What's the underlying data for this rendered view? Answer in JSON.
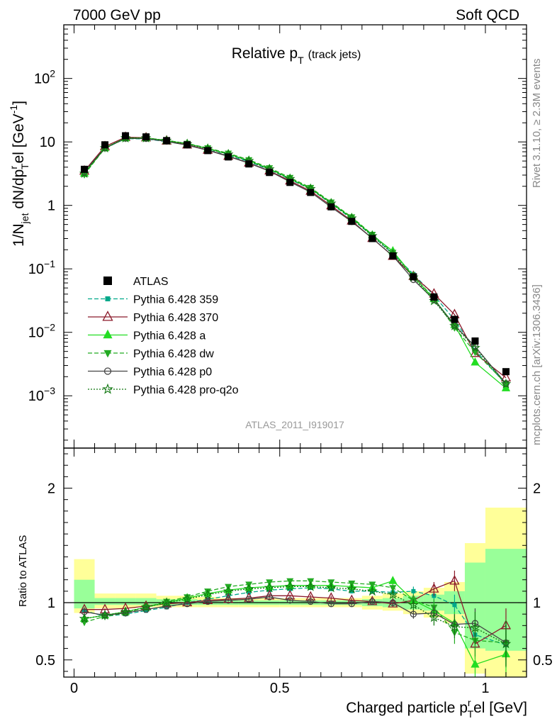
{
  "header": {
    "left": "7000 GeV pp",
    "right": "Soft QCD"
  },
  "side_labels": {
    "rivet": "Rivet 3.1.10, ≥ 2.3M events",
    "mcplots": "mcplots.cern.ch [arXiv:1306.3436]"
  },
  "chart_data": {
    "type": "line",
    "title_main": "Relative p",
    "title_sub": "T",
    "title_paren": "(track jets)",
    "watermark": "ATLAS_2011_I919017",
    "ylabel_parts": [
      "1/N",
      "jet",
      " dN/dp",
      "r",
      "T",
      "el [GeV",
      "-1",
      "]"
    ],
    "ratio_ylabel": "Ratio to ATLAS",
    "xlabel_parts": [
      "Charged particle p",
      "r",
      "T",
      "el [GeV]"
    ],
    "xlim": [
      -0.025,
      1.1
    ],
    "ylim": [
      0.00015,
      700
    ],
    "yscale": "log",
    "ratio_ylim": [
      0.35,
      2.35
    ],
    "x_ticks": [
      {
        "v": 0,
        "label": "0"
      },
      {
        "v": 0.5,
        "label": "0.5"
      },
      {
        "v": 1,
        "label": "1"
      }
    ],
    "y_ticks": [
      {
        "v": 0.001,
        "m": "10",
        "e": "−3"
      },
      {
        "v": 0.01,
        "m": "10",
        "e": "−2"
      },
      {
        "v": 0.1,
        "m": "10",
        "e": "−1"
      },
      {
        "v": 1,
        "m": "1",
        "e": ""
      },
      {
        "v": 10,
        "m": "10",
        "e": ""
      },
      {
        "v": 100,
        "m": "10",
        "e": "2"
      }
    ],
    "ratio_ticks": [
      {
        "v": 0.5,
        "label": "0.5"
      },
      {
        "v": 1,
        "label": "1"
      },
      {
        "v": 2,
        "label": "2"
      }
    ],
    "x": [
      0.025,
      0.075,
      0.125,
      0.175,
      0.225,
      0.275,
      0.325,
      0.375,
      0.425,
      0.475,
      0.525,
      0.575,
      0.625,
      0.675,
      0.725,
      0.775,
      0.825,
      0.875,
      0.925,
      0.975,
      1.05
    ],
    "bin_edges": [
      0,
      0.05,
      0.1,
      0.15,
      0.2,
      0.25,
      0.3,
      0.35,
      0.4,
      0.45,
      0.5,
      0.55,
      0.6,
      0.65,
      0.7,
      0.75,
      0.8,
      0.85,
      0.9,
      0.95,
      1.0,
      1.1
    ],
    "data": {
      "name": "ATLAS",
      "values": [
        3.7,
        9.0,
        12.5,
        12.0,
        10.5,
        9.0,
        7.3,
        5.8,
        4.5,
        3.3,
        2.3,
        1.6,
        0.95,
        0.56,
        0.3,
        0.16,
        0.075,
        0.036,
        0.016,
        0.0073,
        0.0024
      ],
      "band_inner": [
        [
          0.95,
          1.2
        ],
        [
          0.98,
          1.04
        ],
        [
          0.98,
          1.04
        ],
        [
          0.98,
          1.04
        ],
        [
          0.98,
          1.03
        ],
        [
          0.98,
          1.03
        ],
        [
          0.98,
          1.02
        ],
        [
          0.98,
          1.02
        ],
        [
          0.98,
          1.02
        ],
        [
          0.98,
          1.02
        ],
        [
          0.98,
          1.02
        ],
        [
          0.98,
          1.02
        ],
        [
          0.98,
          1.02
        ],
        [
          0.98,
          1.02
        ],
        [
          0.97,
          1.03
        ],
        [
          0.96,
          1.04
        ],
        [
          0.94,
          1.06
        ],
        [
          0.93,
          1.07
        ],
        [
          0.9,
          1.1
        ],
        [
          0.6,
          1.35
        ],
        [
          0.58,
          1.47
        ]
      ],
      "band_outer": [
        [
          0.91,
          1.38
        ],
        [
          0.95,
          1.08
        ],
        [
          0.95,
          1.08
        ],
        [
          0.96,
          1.08
        ],
        [
          0.96,
          1.06
        ],
        [
          0.96,
          1.06
        ],
        [
          0.96,
          1.05
        ],
        [
          0.96,
          1.04
        ],
        [
          0.96,
          1.04
        ],
        [
          0.96,
          1.04
        ],
        [
          0.96,
          1.04
        ],
        [
          0.96,
          1.04
        ],
        [
          0.96,
          1.04
        ],
        [
          0.96,
          1.04
        ],
        [
          0.94,
          1.06
        ],
        [
          0.93,
          1.08
        ],
        [
          0.9,
          1.1
        ],
        [
          0.87,
          1.13
        ],
        [
          0.82,
          1.18
        ],
        [
          0.38,
          1.52
        ],
        [
          0.35,
          1.83
        ]
      ]
    },
    "series": [
      {
        "name": "Pythia 6.428 359",
        "color": "#00a88a",
        "dash": "6,3",
        "marker": "square",
        "ratio": [
          0.93,
          0.88,
          0.9,
          0.93,
          0.96,
          1.0,
          1.03,
          1.06,
          1.09,
          1.11,
          1.12,
          1.13,
          1.12,
          1.1,
          1.1,
          1.09,
          1.1,
          1.06,
          0.98,
          0.72,
          0.63
        ],
        "ratio_err": [
          0.02,
          0.01,
          0.01,
          0.01,
          0.01,
          0.01,
          0.01,
          0.01,
          0.01,
          0.01,
          0.01,
          0.02,
          0.02,
          0.02,
          0.02,
          0.03,
          0.04,
          0.06,
          0.09,
          0.13,
          0.2
        ]
      },
      {
        "name": "Pythia 6.428 370",
        "color": "#8b1a2a",
        "dash": "",
        "marker": "triangle-open",
        "ratio": [
          0.94,
          0.94,
          0.95,
          0.97,
          0.99,
          1.0,
          1.02,
          1.03,
          1.04,
          1.06,
          1.06,
          1.05,
          1.04,
          1.02,
          1.01,
          0.99,
          1.02,
          1.12,
          1.19,
          0.64,
          0.8
        ],
        "ratio_err": [
          0.02,
          0.01,
          0.01,
          0.01,
          0.01,
          0.01,
          0.01,
          0.01,
          0.01,
          0.01,
          0.01,
          0.02,
          0.02,
          0.02,
          0.02,
          0.03,
          0.04,
          0.06,
          0.09,
          0.13,
          0.15
        ]
      },
      {
        "name": "Pythia 6.428 a",
        "color": "#22dd22",
        "dash": "",
        "marker": "triangle",
        "ratio": [
          0.86,
          0.89,
          0.92,
          0.96,
          1.0,
          1.04,
          1.08,
          1.11,
          1.13,
          1.14,
          1.15,
          1.15,
          1.15,
          1.14,
          1.13,
          1.19,
          1.02,
          0.93,
          0.82,
          0.46,
          0.55
        ],
        "ratio_err": [
          0.02,
          0.01,
          0.01,
          0.01,
          0.01,
          0.01,
          0.01,
          0.01,
          0.01,
          0.01,
          0.01,
          0.02,
          0.02,
          0.02,
          0.02,
          0.03,
          0.05,
          0.07,
          0.1,
          0.15,
          0.2
        ]
      },
      {
        "name": "Pythia 6.428 dw",
        "color": "#22aa22",
        "dash": "6,3",
        "marker": "triangle-down",
        "ratio": [
          0.83,
          0.88,
          0.91,
          0.96,
          1.01,
          1.05,
          1.1,
          1.14,
          1.16,
          1.18,
          1.19,
          1.19,
          1.18,
          1.17,
          1.16,
          1.13,
          1.02,
          0.96,
          0.74,
          0.67,
          0.65
        ],
        "ratio_err": [
          0.02,
          0.01,
          0.01,
          0.01,
          0.01,
          0.01,
          0.01,
          0.01,
          0.01,
          0.01,
          0.01,
          0.02,
          0.02,
          0.02,
          0.02,
          0.03,
          0.05,
          0.07,
          0.1,
          0.14,
          0.2
        ]
      },
      {
        "name": "Pythia 6.428 p0",
        "color": "#444444",
        "dash": "",
        "marker": "circle-open",
        "ratio": [
          0.92,
          0.89,
          0.91,
          0.94,
          0.97,
          0.99,
          1.01,
          1.02,
          1.03,
          1.05,
          1.02,
          1.01,
          0.99,
          0.99,
          1.01,
          1.0,
          0.9,
          0.91,
          0.81,
          0.82,
          0.65
        ],
        "ratio_err": [
          0.02,
          0.01,
          0.01,
          0.01,
          0.01,
          0.01,
          0.01,
          0.01,
          0.01,
          0.01,
          0.01,
          0.02,
          0.02,
          0.02,
          0.02,
          0.03,
          0.04,
          0.06,
          0.09,
          0.13,
          0.15
        ]
      },
      {
        "name": "Pythia 6.428 pro-q2o",
        "color": "#117711",
        "dash": "2,2",
        "marker": "star-open",
        "ratio": [
          0.86,
          0.89,
          0.92,
          0.96,
          1.0,
          1.03,
          1.07,
          1.1,
          1.12,
          1.13,
          1.14,
          1.14,
          1.13,
          1.12,
          1.1,
          1.07,
          0.98,
          0.87,
          0.79,
          0.78,
          0.64
        ],
        "ratio_err": [
          0.02,
          0.01,
          0.01,
          0.01,
          0.01,
          0.01,
          0.01,
          0.01,
          0.01,
          0.01,
          0.01,
          0.02,
          0.02,
          0.02,
          0.02,
          0.03,
          0.05,
          0.07,
          0.1,
          0.14,
          0.2
        ]
      }
    ]
  }
}
